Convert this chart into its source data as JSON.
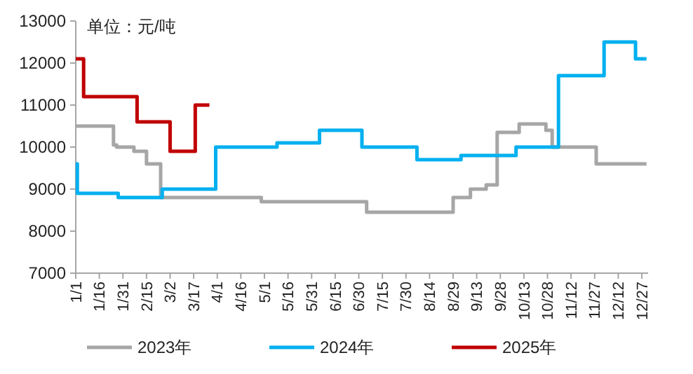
{
  "chart_data": {
    "type": "step",
    "annotations": [
      "单位：元/吨"
    ],
    "xlim": [
      "--01-01",
      "--12-31"
    ],
    "xticks": [
      {
        "value": "--01-01",
        "label": "1/1"
      },
      {
        "value": "--01-16",
        "label": "1/16"
      },
      {
        "value": "--01-31",
        "label": "1/31"
      },
      {
        "value": "--02-15",
        "label": "2/15"
      },
      {
        "value": "--03-02",
        "label": "3/2"
      },
      {
        "value": "--03-17",
        "label": "3/17"
      },
      {
        "value": "--04-01",
        "label": "4/1"
      },
      {
        "value": "--04-16",
        "label": "4/16"
      },
      {
        "value": "--05-01",
        "label": "5/1"
      },
      {
        "value": "--05-16",
        "label": "5/16"
      },
      {
        "value": "--05-31",
        "label": "5/31"
      },
      {
        "value": "--06-15",
        "label": "6/15"
      },
      {
        "value": "--06-30",
        "label": "6/30"
      },
      {
        "value": "--07-15",
        "label": "7/15"
      },
      {
        "value": "--07-30",
        "label": "7/30"
      },
      {
        "value": "--08-14",
        "label": "8/14"
      },
      {
        "value": "--08-29",
        "label": "8/29"
      },
      {
        "value": "--09-13",
        "label": "9/13"
      },
      {
        "value": "--09-28",
        "label": "9/28"
      },
      {
        "value": "--10-13",
        "label": "10/13"
      },
      {
        "value": "--10-28",
        "label": "10/28"
      },
      {
        "value": "--11-12",
        "label": "11/12"
      },
      {
        "value": "--11-27",
        "label": "11/27"
      },
      {
        "value": "--12-12",
        "label": "12/12"
      },
      {
        "value": "--12-27",
        "label": "12/27"
      }
    ],
    "ylim": [
      7000,
      13000
    ],
    "yticks": [
      7000,
      8000,
      9000,
      10000,
      11000,
      12000,
      13000
    ],
    "legend": "bottom",
    "grid": false,
    "series": [
      {
        "name": "2023年",
        "color": "#a6a6a6",
        "x": [
          "--01-01",
          "--01-25",
          "--01-27",
          "--02-07",
          "--02-15",
          "--02-24",
          "--04-29",
          "--07-05",
          "--08-29",
          "--09-09",
          "--09-19",
          "--09-26",
          "--10-10",
          "--10-27",
          "--10-31",
          "--11-28",
          "--12-30"
        ],
        "values": [
          10500,
          10050,
          10000,
          9900,
          9600,
          8800,
          8700,
          8450,
          8800,
          9000,
          9100,
          10350,
          10550,
          10400,
          10000,
          9600,
          9600
        ]
      },
      {
        "name": "2024年",
        "color": "#00b0f0",
        "x": [
          "--01-01",
          "--01-02",
          "--01-28",
          "--02-25",
          "--03-31",
          "--05-09",
          "--06-05",
          "--07-02",
          "--08-06",
          "--09-03",
          "--10-08",
          "--11-04",
          "--12-03",
          "--12-23",
          "--12-30"
        ],
        "values": [
          9600,
          8900,
          8800,
          9000,
          10000,
          10100,
          10400,
          10000,
          9700,
          9800,
          10000,
          11700,
          12500,
          12100,
          12100
        ]
      },
      {
        "name": "2025年",
        "color": "#c00000",
        "x": [
          "--01-01",
          "--01-06",
          "--02-09",
          "--03-02",
          "--03-18",
          "--03-27"
        ],
        "values": [
          12100,
          11200,
          10600,
          9900,
          11000,
          11000
        ]
      }
    ]
  }
}
